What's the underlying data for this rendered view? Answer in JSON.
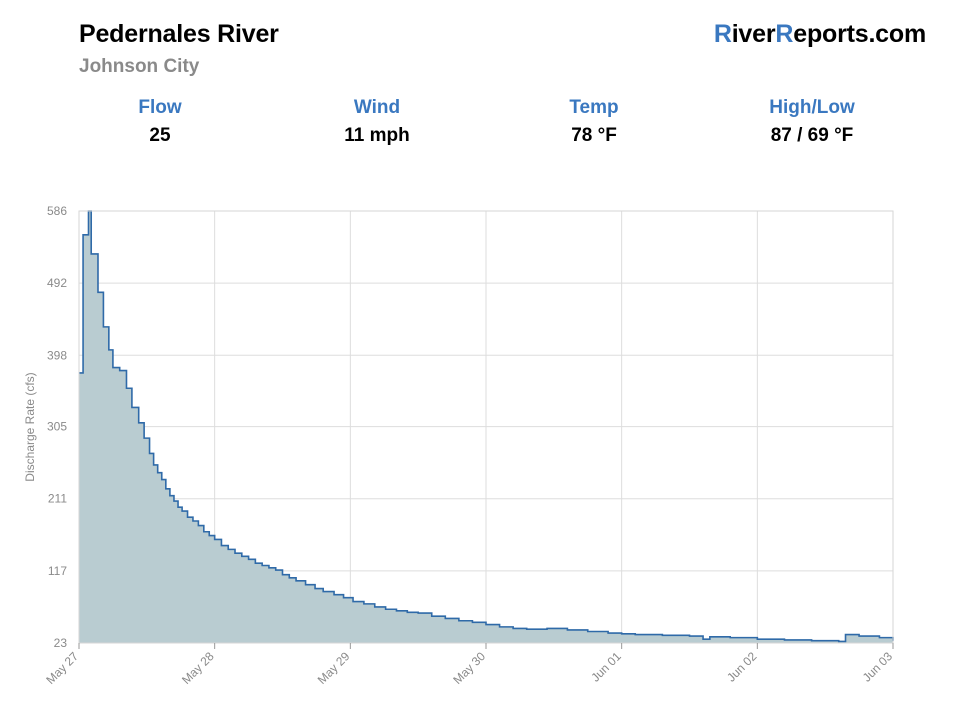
{
  "header": {
    "title": "Pedernales River",
    "subtitle": "Johnson City",
    "brand_part1": "R",
    "brand_part2": "iver",
    "brand_part3": "R",
    "brand_part4": "eports.com"
  },
  "stats": [
    {
      "label": "Flow",
      "value": "25"
    },
    {
      "label": "Wind",
      "value": "11 mph"
    },
    {
      "label": "Temp",
      "value": "78 °F"
    },
    {
      "label": "High/Low",
      "value": "87 / 69 °F"
    }
  ],
  "colors": {
    "accent": "#3a78c0",
    "line": "#2f6aa8",
    "fill": "#b9ccd1",
    "grid": "#dddddd"
  },
  "chart_data": {
    "type": "area",
    "title": "",
    "xlabel": "",
    "ylabel": "Discharge Rate (cfs)",
    "ylim": [
      23,
      586
    ],
    "xlim": [
      0,
      7
    ],
    "grid": true,
    "step": true,
    "y_ticks": [
      "23",
      "117",
      "211",
      "305",
      "398",
      "492",
      "586"
    ],
    "y_tick_values": [
      23,
      117,
      211,
      305,
      398,
      492,
      586
    ],
    "x_ticks": [
      "May 27",
      "May 28",
      "May 29",
      "May 30",
      "Jun 01",
      "Jun 02",
      "Jun 03"
    ],
    "x_tick_values": [
      0,
      1,
      2,
      3,
      4,
      5,
      6
    ],
    "x_tick_note": "x value = days since May 27 on the plotted axis",
    "series": [
      {
        "name": "Discharge",
        "x": [
          0,
          0.03,
          0.07,
          0.09,
          0.14,
          0.18,
          0.22,
          0.25,
          0.3,
          0.35,
          0.39,
          0.44,
          0.48,
          0.52,
          0.55,
          0.58,
          0.61,
          0.64,
          0.67,
          0.7,
          0.73,
          0.76,
          0.8,
          0.84,
          0.88,
          0.92,
          0.96,
          1.0,
          1.05,
          1.1,
          1.15,
          1.2,
          1.25,
          1.3,
          1.35,
          1.4,
          1.45,
          1.5,
          1.55,
          1.6,
          1.67,
          1.74,
          1.8,
          1.88,
          1.95,
          2.02,
          2.1,
          2.18,
          2.26,
          2.34,
          2.42,
          2.5,
          2.6,
          2.7,
          2.8,
          2.9,
          3.0,
          3.1,
          3.2,
          3.3,
          3.45,
          3.6,
          3.75,
          3.9,
          4.0,
          4.1,
          4.3,
          4.5,
          4.6,
          4.65,
          4.8,
          5.0,
          5.2,
          5.4,
          5.6,
          5.65,
          5.75,
          5.9,
          6.0
        ],
        "values": [
          375,
          555,
          586,
          530,
          480,
          435,
          405,
          382,
          378,
          355,
          330,
          310,
          290,
          270,
          255,
          245,
          236,
          224,
          215,
          208,
          200,
          195,
          187,
          182,
          176,
          168,
          163,
          158,
          150,
          145,
          140,
          136,
          132,
          127,
          124,
          121,
          118,
          112,
          108,
          104,
          99,
          94,
          90,
          86,
          82,
          77,
          74,
          70,
          67,
          65,
          63,
          62,
          58,
          55,
          52,
          50,
          47,
          44,
          42,
          41,
          42,
          40,
          38,
          36,
          35,
          34,
          33,
          32,
          28,
          31,
          30,
          28,
          27,
          26,
          25,
          34,
          32,
          30,
          26
        ]
      }
    ]
  }
}
